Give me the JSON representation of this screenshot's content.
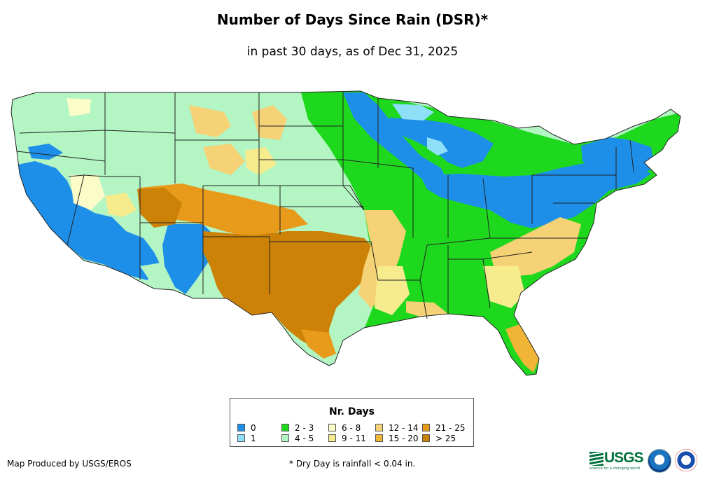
{
  "header": {
    "title": "Number of Days Since Rain (DSR)*",
    "subtitle": "in past 30 days, as of Dec 31, 2025"
  },
  "legend": {
    "title": "Nr. Days",
    "items": [
      {
        "label": "0",
        "color": "#1e8fe8"
      },
      {
        "label": "1",
        "color": "#8ee0f8"
      },
      {
        "label": "2 - 3",
        "color": "#1ed81e"
      },
      {
        "label": "4 - 5",
        "color": "#b4f5c4"
      },
      {
        "label": "6 - 8",
        "color": "#fbfcc8"
      },
      {
        "label": "9 - 11",
        "color": "#f6ec8e"
      },
      {
        "label": "12 - 14",
        "color": "#f5d275"
      },
      {
        "label": "15 - 20",
        "color": "#f0b436"
      },
      {
        "label": "21 - 25",
        "color": "#e89a1a"
      },
      {
        "label": "> 25",
        "color": "#cc8206"
      }
    ]
  },
  "footer": {
    "credit": "Map Produced by USGS/EROS",
    "footnote": "* Dry Day is rainfall < 0.04 in.",
    "usgs_logo_text": "USGS",
    "usgs_tagline": "science for a changing world"
  },
  "map": {
    "region": "Contiguous United States",
    "state_border_color": "#222222",
    "background_color": "#ffffff"
  }
}
